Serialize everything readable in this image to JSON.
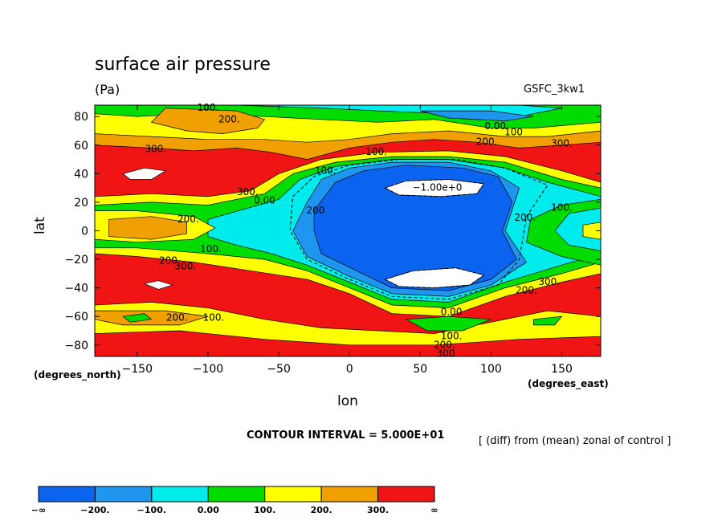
{
  "chart_data": {
    "type": "heatmap",
    "variant": "filled-contour-map",
    "title": "surface air pressure",
    "units": "(Pa)",
    "model_label": "GSFC_3kw1",
    "xlabel": "lon",
    "ylabel": "lat",
    "x_unit_note": "(degrees_east)",
    "y_unit_note": "(degrees_north)",
    "xlim": [
      -180,
      177.5
    ],
    "ylim": [
      -88,
      88
    ],
    "x_ticks": [
      -150,
      -100,
      -50,
      0,
      50,
      100,
      150
    ],
    "x_tick_labels": [
      "−150",
      "−100",
      "−50",
      "0",
      "50",
      "100",
      "150"
    ],
    "y_ticks": [
      80,
      60,
      40,
      20,
      0,
      -20,
      -40,
      -60,
      -80
    ],
    "y_tick_labels": [
      "80",
      "60",
      "40",
      "20",
      "0",
      "−20",
      "−40",
      "−60",
      "−80"
    ],
    "contour_interval_label": "CONTOUR INTERVAL = 5.000E+01",
    "note": "[ (diff) from (mean) zonal of control ]",
    "levels": [
      "−∞",
      "−200.",
      "−100.",
      "0.00",
      "100.",
      "200.",
      "300.",
      "∞"
    ],
    "colors": [
      "#0a64f0",
      "#1e96f0",
      "#00ebeb",
      "#00dc00",
      "#ffff00",
      "#f0a000",
      "#f01414"
    ],
    "contour_labels": [
      {
        "text": "100.",
        "lon": -100,
        "lat": 86
      },
      {
        "text": "200.",
        "lon": -85,
        "lat": 78
      },
      {
        "text": "300.",
        "lon": -137,
        "lat": 57
      },
      {
        "text": "300.",
        "lon": -72,
        "lat": 27
      },
      {
        "text": "0.00",
        "lon": -60,
        "lat": 21
      },
      {
        "text": "200.",
        "lon": -114,
        "lat": 8
      },
      {
        "text": "100.",
        "lon": -98,
        "lat": -13
      },
      {
        "text": "200.",
        "lon": -127,
        "lat": -21
      },
      {
        "text": "300.",
        "lon": -116,
        "lat": -25
      },
      {
        "text": "200.",
        "lon": -122,
        "lat": -61
      },
      {
        "text": "100.",
        "lon": -96,
        "lat": -61
      },
      {
        "text": "100.",
        "lon": 19,
        "lat": 55
      },
      {
        "text": "100.",
        "lon": -17,
        "lat": 42
      },
      {
        "text": "200",
        "lon": -24,
        "lat": 14
      },
      {
        "text": "−1.00e+0",
        "lon": 62,
        "lat": 30
      },
      {
        "text": "0.00",
        "lon": 103,
        "lat": 73
      },
      {
        "text": "100",
        "lon": 116,
        "lat": 69
      },
      {
        "text": "200.",
        "lon": 97,
        "lat": 62
      },
      {
        "text": "300.",
        "lon": 150,
        "lat": 61
      },
      {
        "text": "200.",
        "lon": 124,
        "lat": 9
      },
      {
        "text": "100.",
        "lon": 150,
        "lat": 16
      },
      {
        "text": "300.",
        "lon": 141,
        "lat": -36
      },
      {
        "text": "200.",
        "lon": 125,
        "lat": -42
      },
      {
        "text": "0.00",
        "lon": 72,
        "lat": -57
      },
      {
        "text": "100.",
        "lon": 72,
        "lat": -74
      },
      {
        "text": "200.",
        "lon": 67,
        "lat": -80
      },
      {
        "text": "300",
        "lon": 68,
        "lat": -86
      }
    ]
  }
}
